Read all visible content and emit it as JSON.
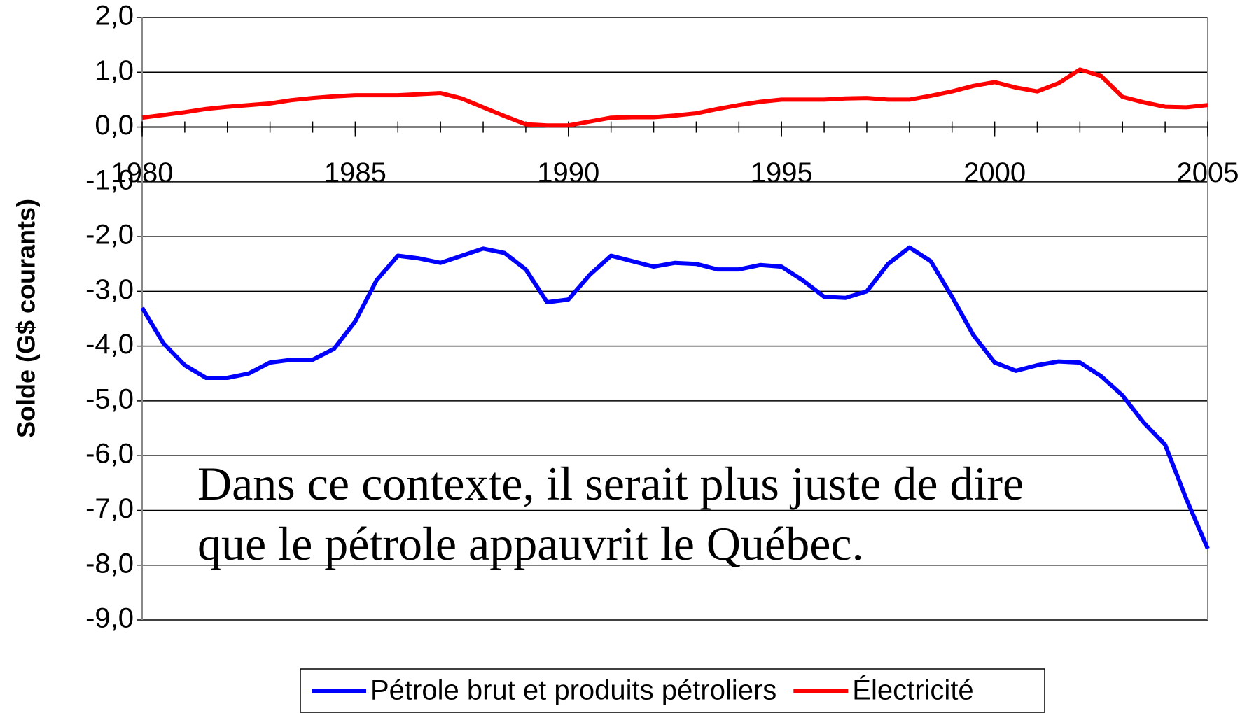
{
  "chart_data": {
    "type": "line",
    "y_label": "Solde (G$ courants)",
    "annotation": [
      "Dans ce contexte, il serait plus juste de dire",
      "que le pétrole appauvrit le Québec."
    ],
    "xlim": [
      1980,
      2005
    ],
    "xticks": [
      1980,
      1985,
      1990,
      1995,
      2000,
      2005
    ],
    "xticks_minor": [
      1980,
      1981,
      1982,
      1983,
      1984,
      1985,
      1986,
      1987,
      1988,
      1989,
      1990,
      1991,
      1992,
      1993,
      1994,
      1995,
      1996,
      1997,
      1998,
      1999,
      2000,
      2001,
      2002,
      2003,
      2004,
      2005
    ],
    "ylim": [
      -9,
      2
    ],
    "yticks": [
      {
        "value": 2,
        "label": "2,0"
      },
      {
        "value": 1,
        "label": "1,0"
      },
      {
        "value": 0,
        "label": "0,0"
      },
      {
        "value": -1,
        "label": "-1,0"
      },
      {
        "value": -2,
        "label": "-2,0"
      },
      {
        "value": -3,
        "label": "-3,0"
      },
      {
        "value": -4,
        "label": "-4,0"
      },
      {
        "value": -5,
        "label": "-5,0"
      },
      {
        "value": -6,
        "label": "-6,0"
      },
      {
        "value": -7,
        "label": "-7,0"
      },
      {
        "value": -8,
        "label": "-8,0"
      },
      {
        "value": -9,
        "label": "-9,0"
      }
    ],
    "grid": true,
    "legend": "bottom",
    "x": [
      1980,
      1980.5,
      1981,
      1981.5,
      1982,
      1982.5,
      1983,
      1983.5,
      1984,
      1984.5,
      1985,
      1985.5,
      1986,
      1986.5,
      1987,
      1987.5,
      1988,
      1988.5,
      1989,
      1989.5,
      1990,
      1990.5,
      1991,
      1991.5,
      1992,
      1992.5,
      1993,
      1993.5,
      1994,
      1994.5,
      1995,
      1995.5,
      1996,
      1996.5,
      1997,
      1997.5,
      1998,
      1998.5,
      1999,
      1999.5,
      2000,
      2000.5,
      2001,
      2001.5,
      2002,
      2002.5,
      2003,
      2003.5,
      2004,
      2004.5,
      2005
    ],
    "series": [
      {
        "name": "Pétrole brut et produits pétroliers",
        "color": "#0000ff",
        "values": [
          -3.3,
          -3.95,
          -4.35,
          -4.58,
          -4.58,
          -4.5,
          -4.3,
          -4.25,
          -4.25,
          -4.05,
          -3.55,
          -2.8,
          -2.35,
          -2.4,
          -2.48,
          -2.35,
          -2.22,
          -2.3,
          -2.6,
          -3.2,
          -3.15,
          -2.7,
          -2.35,
          -2.45,
          -2.55,
          -2.48,
          -2.5,
          -2.6,
          -2.6,
          -2.52,
          -2.55,
          -2.8,
          -3.1,
          -3.12,
          -3.0,
          -2.5,
          -2.2,
          -2.45,
          -3.1,
          -3.8,
          -4.3,
          -4.45,
          -4.35,
          -4.28,
          -4.3,
          -4.55,
          -4.9,
          -5.4,
          -5.8,
          -6.8,
          -7.7
        ]
      },
      {
        "name": "Électricité",
        "color": "#ff0000",
        "values": [
          0.17,
          0.22,
          0.27,
          0.33,
          0.37,
          0.4,
          0.43,
          0.49,
          0.53,
          0.56,
          0.58,
          0.58,
          0.58,
          0.6,
          0.62,
          0.52,
          0.36,
          0.2,
          0.05,
          0.03,
          0.03,
          0.1,
          0.17,
          0.18,
          0.18,
          0.21,
          0.25,
          0.33,
          0.4,
          0.46,
          0.5,
          0.5,
          0.5,
          0.52,
          0.53,
          0.5,
          0.5,
          0.57,
          0.65,
          0.75,
          0.82,
          0.72,
          0.65,
          0.8,
          1.05,
          0.93,
          0.55,
          0.45,
          0.37,
          0.36,
          0.4
        ]
      }
    ]
  }
}
